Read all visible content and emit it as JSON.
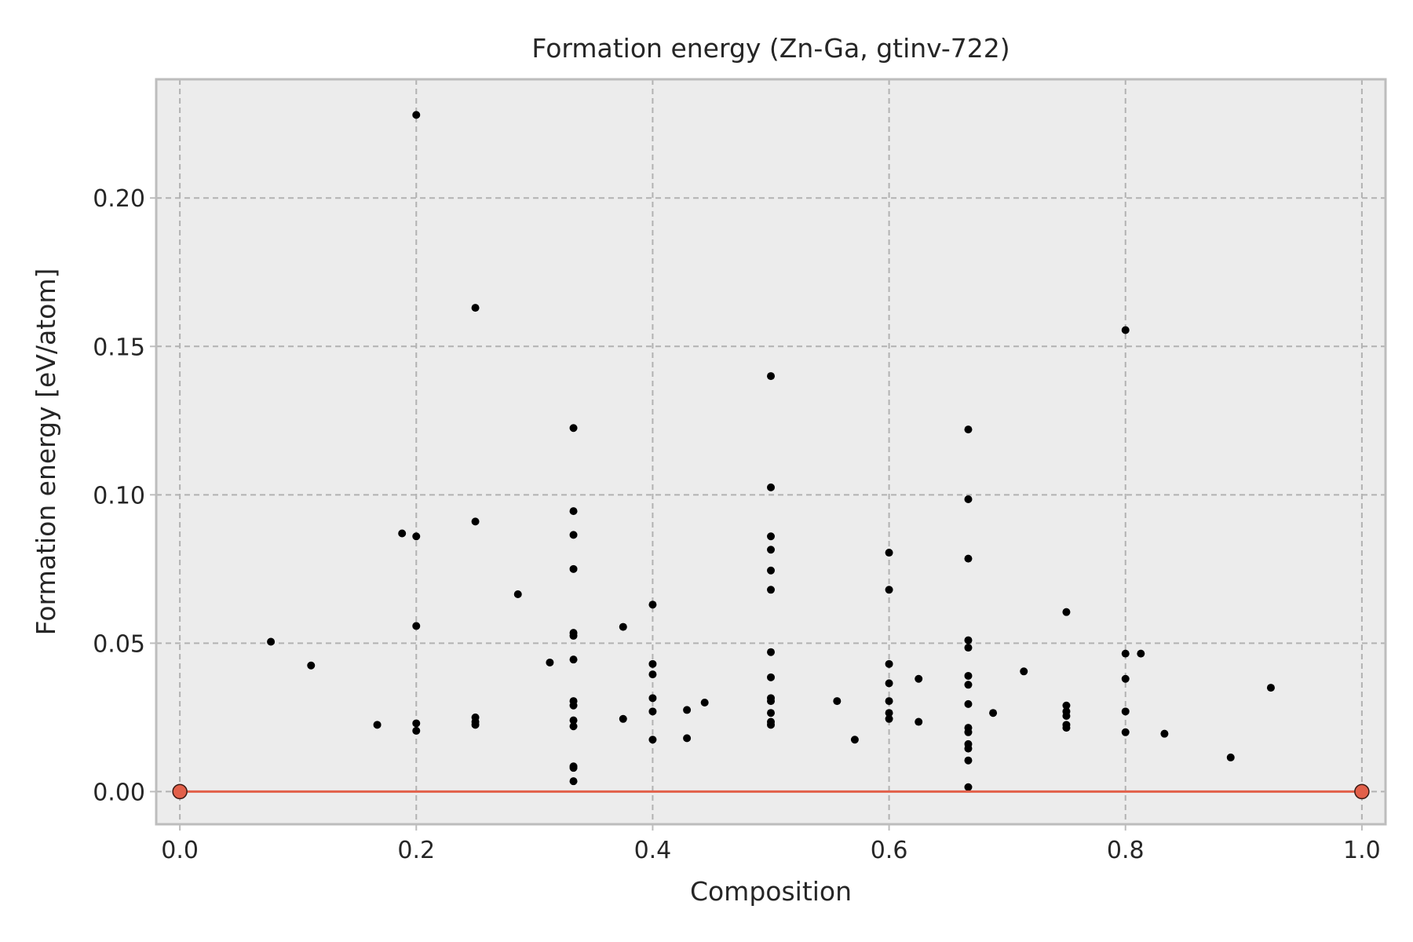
{
  "chart_data": {
    "type": "scatter",
    "title": "Formation energy (Zn-Ga, gtinv-722)",
    "xlabel": "Composition",
    "ylabel": "Formation energy [eV/atom]",
    "xlim": [
      -0.02,
      1.02
    ],
    "ylim": [
      -0.011,
      0.24
    ],
    "xticks": [
      "0.0",
      "0.2",
      "0.4",
      "0.6",
      "0.8",
      "1.0"
    ],
    "yticks": [
      "0.00",
      "0.05",
      "0.10",
      "0.15",
      "0.20"
    ],
    "grid": true,
    "colors": {
      "background": "#ececec",
      "frame": "#bdbdbd",
      "grid": "#b2b2b2",
      "points": "#000000",
      "hull": "#e2604a"
    },
    "series": [
      {
        "type": "scatter",
        "points": [
          [
            0.077,
            0.0505
          ],
          [
            0.111,
            0.0425
          ],
          [
            0.167,
            0.0225
          ],
          [
            0.188,
            0.087
          ],
          [
            0.2,
            0.228
          ],
          [
            0.2,
            0.086
          ],
          [
            0.2,
            0.0558
          ],
          [
            0.2,
            0.023
          ],
          [
            0.2,
            0.0205
          ],
          [
            0.25,
            0.163
          ],
          [
            0.25,
            0.091
          ],
          [
            0.25,
            0.025
          ],
          [
            0.25,
            0.0235
          ],
          [
            0.25,
            0.0225
          ],
          [
            0.286,
            0.0665
          ],
          [
            0.313,
            0.0435
          ],
          [
            0.333,
            0.1225
          ],
          [
            0.333,
            0.0945
          ],
          [
            0.333,
            0.0865
          ],
          [
            0.333,
            0.075
          ],
          [
            0.333,
            0.0535
          ],
          [
            0.333,
            0.0525
          ],
          [
            0.333,
            0.0445
          ],
          [
            0.333,
            0.0305
          ],
          [
            0.333,
            0.029
          ],
          [
            0.333,
            0.024
          ],
          [
            0.333,
            0.022
          ],
          [
            0.333,
            0.0085
          ],
          [
            0.333,
            0.008
          ],
          [
            0.333,
            0.0035
          ],
          [
            0.375,
            0.0555
          ],
          [
            0.375,
            0.0245
          ],
          [
            0.4,
            0.063
          ],
          [
            0.4,
            0.043
          ],
          [
            0.4,
            0.0395
          ],
          [
            0.4,
            0.0315
          ],
          [
            0.4,
            0.027
          ],
          [
            0.4,
            0.0175
          ],
          [
            0.429,
            0.0275
          ],
          [
            0.429,
            0.018
          ],
          [
            0.444,
            0.03
          ],
          [
            0.5,
            0.14
          ],
          [
            0.5,
            0.1025
          ],
          [
            0.5,
            0.086
          ],
          [
            0.5,
            0.0815
          ],
          [
            0.5,
            0.0745
          ],
          [
            0.5,
            0.068
          ],
          [
            0.5,
            0.047
          ],
          [
            0.5,
            0.0385
          ],
          [
            0.5,
            0.0315
          ],
          [
            0.5,
            0.0305
          ],
          [
            0.5,
            0.0265
          ],
          [
            0.5,
            0.0235
          ],
          [
            0.5,
            0.0225
          ],
          [
            0.556,
            0.0305
          ],
          [
            0.571,
            0.0175
          ],
          [
            0.6,
            0.0805
          ],
          [
            0.6,
            0.068
          ],
          [
            0.6,
            0.043
          ],
          [
            0.6,
            0.0365
          ],
          [
            0.6,
            0.0305
          ],
          [
            0.6,
            0.0265
          ],
          [
            0.6,
            0.0245
          ],
          [
            0.625,
            0.038
          ],
          [
            0.625,
            0.0235
          ],
          [
            0.667,
            0.122
          ],
          [
            0.667,
            0.0985
          ],
          [
            0.667,
            0.0785
          ],
          [
            0.667,
            0.051
          ],
          [
            0.667,
            0.0485
          ],
          [
            0.667,
            0.039
          ],
          [
            0.667,
            0.036
          ],
          [
            0.667,
            0.0295
          ],
          [
            0.667,
            0.0215
          ],
          [
            0.667,
            0.02
          ],
          [
            0.667,
            0.016
          ],
          [
            0.667,
            0.0145
          ],
          [
            0.667,
            0.0105
          ],
          [
            0.667,
            0.0015
          ],
          [
            0.688,
            0.0265
          ],
          [
            0.714,
            0.0405
          ],
          [
            0.75,
            0.0605
          ],
          [
            0.75,
            0.029
          ],
          [
            0.75,
            0.027
          ],
          [
            0.75,
            0.0255
          ],
          [
            0.75,
            0.0225
          ],
          [
            0.75,
            0.0215
          ],
          [
            0.8,
            0.1555
          ],
          [
            0.8,
            0.0465
          ],
          [
            0.8,
            0.038
          ],
          [
            0.8,
            0.027
          ],
          [
            0.8,
            0.02
          ],
          [
            0.813,
            0.0465
          ],
          [
            0.833,
            0.0195
          ],
          [
            0.889,
            0.0115
          ],
          [
            0.923,
            0.035
          ]
        ]
      },
      {
        "type": "line",
        "points": [
          [
            0.0,
            0.0
          ],
          [
            1.0,
            0.0
          ]
        ]
      }
    ]
  }
}
